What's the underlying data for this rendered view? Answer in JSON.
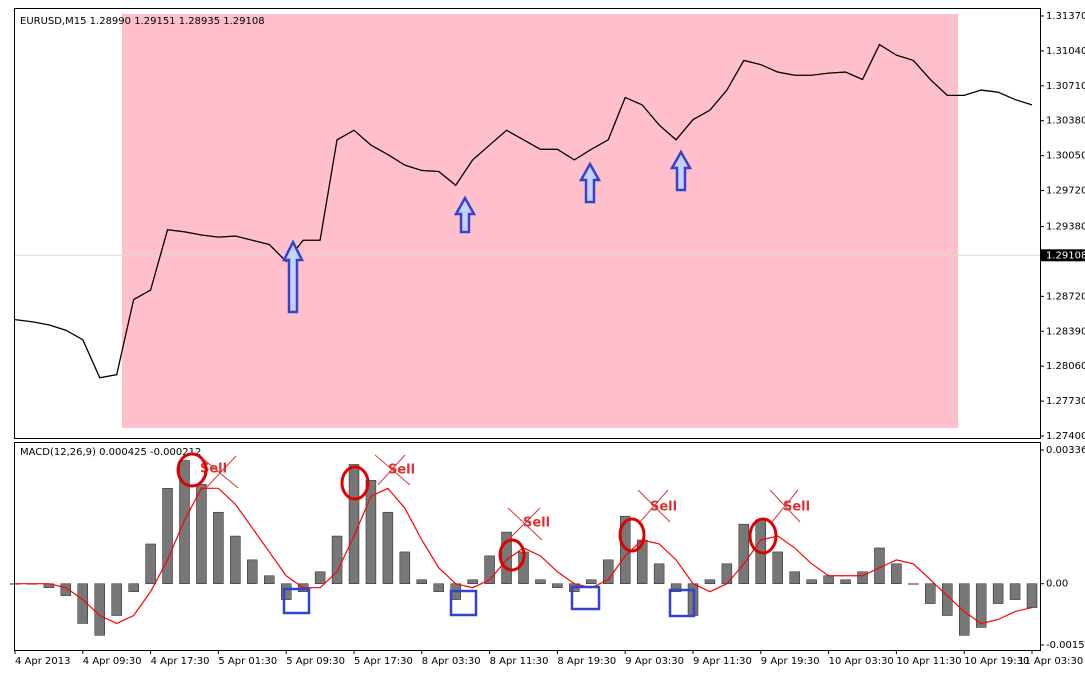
{
  "chart_data": [
    {
      "type": "line",
      "title": "EURUSD,M15  1.28990 1.29151 1.28935 1.29108",
      "categories": [
        "4 Apr 2013",
        null,
        null,
        null,
        "4 Apr 09:30",
        null,
        null,
        null,
        "4 Apr 17:30",
        null,
        null,
        null,
        "5 Apr 01:30",
        null,
        null,
        null,
        "5 Apr 09:30",
        null,
        null,
        null,
        "5 Apr 17:30",
        null,
        null,
        null,
        "8 Apr 03:30",
        null,
        null,
        null,
        "8 Apr 11:30",
        null,
        null,
        null,
        "8 Apr 19:30",
        null,
        null,
        null,
        "9 Apr 03:30",
        null,
        null,
        null,
        "9 Apr 11:30",
        null,
        null,
        null,
        "9 Apr 19:30",
        null,
        null,
        null,
        "10 Apr 03:30",
        null,
        null,
        null,
        "10 Apr 11:30",
        null,
        null,
        null,
        "10 Apr 19:30",
        null,
        null,
        null,
        "11 Apr 03:30"
      ],
      "values": [
        1.285,
        1.2848,
        1.2845,
        1.284,
        1.2831,
        1.2795,
        1.2798,
        1.2869,
        1.2878,
        1.2935,
        1.2933,
        1.293,
        1.2928,
        1.2929,
        1.2925,
        1.2921,
        1.2905,
        1.2925,
        1.2925,
        1.302,
        1.3029,
        1.3015,
        1.3006,
        1.2996,
        1.2991,
        1.299,
        1.2977,
        1.3001,
        1.3015,
        1.3029,
        1.302,
        1.3011,
        1.3011,
        1.3001,
        1.3011,
        1.302,
        1.306,
        1.3053,
        1.3034,
        1.302,
        1.3039,
        1.3048,
        1.3067,
        1.3095,
        1.3091,
        1.3084,
        1.3081,
        1.3081,
        1.3083,
        1.3084,
        1.3077,
        1.311,
        1.31,
        1.3095,
        1.3077,
        1.3062,
        1.3062,
        1.3067,
        1.3065,
        1.3058,
        1.3053
      ],
      "color": "#000000",
      "ylim": [
        1.274,
        1.3137
      ],
      "yticks": [
        {
          "value": 1.3137,
          "label": "1.31370"
        },
        {
          "value": 1.3104,
          "label": "1.31040"
        },
        {
          "value": 1.3071,
          "label": "1.30710"
        },
        {
          "value": 1.3038,
          "label": "1.30380"
        },
        {
          "value": 1.3005,
          "label": "1.30050"
        },
        {
          "value": 1.2972,
          "label": "1.29720"
        },
        {
          "value": 1.2938,
          "label": "1.29380"
        },
        {
          "value": 1.2872,
          "label": "1.28720"
        },
        {
          "value": 1.2839,
          "label": "1.28390"
        },
        {
          "value": 1.2806,
          "label": "1.28060"
        },
        {
          "value": 1.2773,
          "label": "1.27730"
        },
        {
          "value": 1.274,
          "label": "1.27400"
        }
      ],
      "last_price": 1.29108
    },
    {
      "type": "bar",
      "title": "MACD(12,26,9) 0.000425 -0.000212",
      "series": [
        {
          "color": "#000000",
          "values": [
            0,
            0,
            -0.0001,
            -0.0003,
            -0.001,
            -0.0013,
            -0.0008,
            -0.0002,
            0.001,
            0.0024,
            0.0031,
            0.0025,
            0.0018,
            0.0012,
            0.0006,
            0.0002,
            -0.0004,
            -0.0002,
            0.0003,
            0.0012,
            0.003,
            0.0026,
            0.0018,
            0.0008,
            0.0001,
            -0.0002,
            -0.0004,
            0.0001,
            0.0007,
            0.0013,
            0.0008,
            0.0001,
            -0.0001,
            -0.0002,
            0.0001,
            0.0006,
            0.0017,
            0.0011,
            0.0005,
            -0.0002,
            -0.0008,
            0.0001,
            0.0005,
            0.0015,
            0.0016,
            0.0008,
            0.0003,
            0.0001,
            0.0002,
            0.0001,
            0.0003,
            0.0009,
            0.0005,
            0,
            -0.0005,
            -0.0008,
            -0.0013,
            -0.0011,
            -0.0005,
            -0.0004,
            -0.0006
          ]
        },
        {
          "type": "line",
          "color": "#ff0000",
          "values": [
            0,
            0,
            0,
            -0.0001,
            -0.0004,
            -0.0008,
            -0.001,
            -0.0008,
            -0.0002,
            0.0006,
            0.0016,
            0.0024,
            0.0024,
            0.002,
            0.0014,
            0.0008,
            0.0002,
            -0.0001,
            -0.0001,
            0.0003,
            0.0012,
            0.0022,
            0.0024,
            0.0019,
            0.0011,
            0.0004,
            0,
            -0.0001,
            0.0001,
            0.0006,
            0.0009,
            0.0007,
            0.0003,
            0,
            -0.0001,
            0.0001,
            0.0007,
            0.0011,
            0.001,
            0.0006,
            0,
            -0.0002,
            0,
            0.0005,
            0.0011,
            0.0012,
            0.0009,
            0.0005,
            0.0002,
            0.0002,
            0.0002,
            0.0004,
            0.0006,
            0.0005,
            0.0001,
            -0.0003,
            -0.0007,
            -0.001,
            -0.0009,
            -0.0007,
            -0.0006
          ]
        }
      ],
      "ylim": [
        -0.001542,
        0.003364
      ],
      "yticks": [
        0.003364,
        {
          "value": 0,
          "label": "0.00"
        },
        {
          "value": -0.001542,
          "label": "-0.00154"
        }
      ],
      "annotations": [
        "Sell",
        "Sell",
        "Sell",
        "Sell",
        "Sell"
      ]
    }
  ]
}
